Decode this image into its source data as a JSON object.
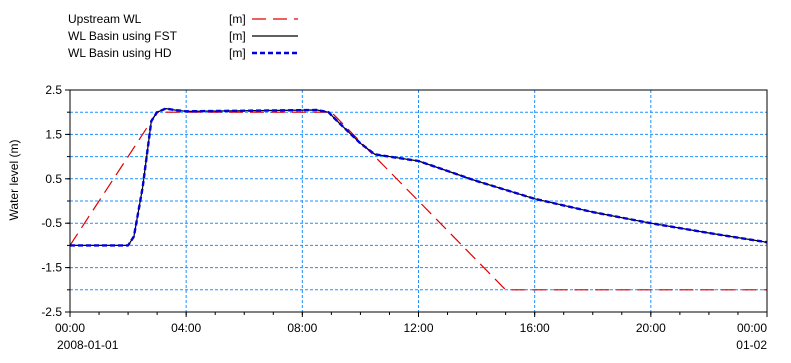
{
  "chart_data": {
    "type": "line",
    "title": "",
    "xlabel": "",
    "ylabel": "Water level (m)",
    "ylim": [
      -2.5,
      2.5
    ],
    "xlim": [
      0,
      24
    ],
    "grid": true,
    "legend_position": "top-left",
    "y_ticks": [
      "2.5",
      "1.5",
      "0.5",
      "-0.5",
      "-1.5",
      "-2.5"
    ],
    "y_gridlines": [
      2.0,
      1.5,
      1.0,
      0.5,
      0.0,
      -0.5,
      -1.0,
      -1.5,
      -2.0
    ],
    "x_ticks": [
      {
        "x": 0,
        "label": "00:00",
        "sub": "2008-01-01"
      },
      {
        "x": 4,
        "label": "04:00",
        "sub": ""
      },
      {
        "x": 8,
        "label": "08:00",
        "sub": ""
      },
      {
        "x": 12,
        "label": "12:00",
        "sub": ""
      },
      {
        "x": 16,
        "label": "16:00",
        "sub": ""
      },
      {
        "x": 20,
        "label": "20:00",
        "sub": ""
      },
      {
        "x": 24,
        "label": "00:00",
        "sub": "01-02"
      }
    ],
    "series": [
      {
        "name": "Upstream WL",
        "unit": "[m]",
        "color": "#e00000",
        "style": "dashed",
        "x": [
          0,
          3,
          9,
          10.5,
          15,
          24
        ],
        "y": [
          -1.0,
          2.0,
          2.0,
          1.0,
          -2.0,
          -2.0
        ]
      },
      {
        "name": "WL Basin using FST",
        "unit": "[m]",
        "color": "#000000",
        "style": "solid",
        "x": [
          0,
          2.0,
          2.2,
          2.5,
          2.8,
          3.0,
          3.3,
          3.6,
          4.0,
          8.5,
          8.9,
          9.2,
          10.0,
          10.5,
          12,
          14,
          16,
          18,
          20,
          22,
          24
        ],
        "y": [
          -1.0,
          -1.0,
          -0.8,
          0.3,
          1.8,
          2.0,
          2.08,
          2.05,
          2.02,
          2.05,
          2.0,
          1.8,
          1.3,
          1.05,
          0.9,
          0.45,
          0.05,
          -0.25,
          -0.5,
          -0.72,
          -0.93
        ]
      },
      {
        "name": "WL Basin using HD",
        "unit": "[m]",
        "color": "#0000e0",
        "style": "dotted",
        "x": [
          0,
          2.0,
          2.2,
          2.5,
          2.8,
          3.0,
          3.3,
          3.6,
          4.0,
          8.5,
          8.9,
          9.2,
          10.0,
          10.5,
          12,
          14,
          16,
          18,
          20,
          22,
          24
        ],
        "y": [
          -1.0,
          -1.0,
          -0.8,
          0.3,
          1.8,
          2.0,
          2.08,
          2.05,
          2.02,
          2.05,
          2.0,
          1.8,
          1.3,
          1.05,
          0.9,
          0.45,
          0.05,
          -0.25,
          -0.5,
          -0.72,
          -0.93
        ]
      }
    ]
  }
}
